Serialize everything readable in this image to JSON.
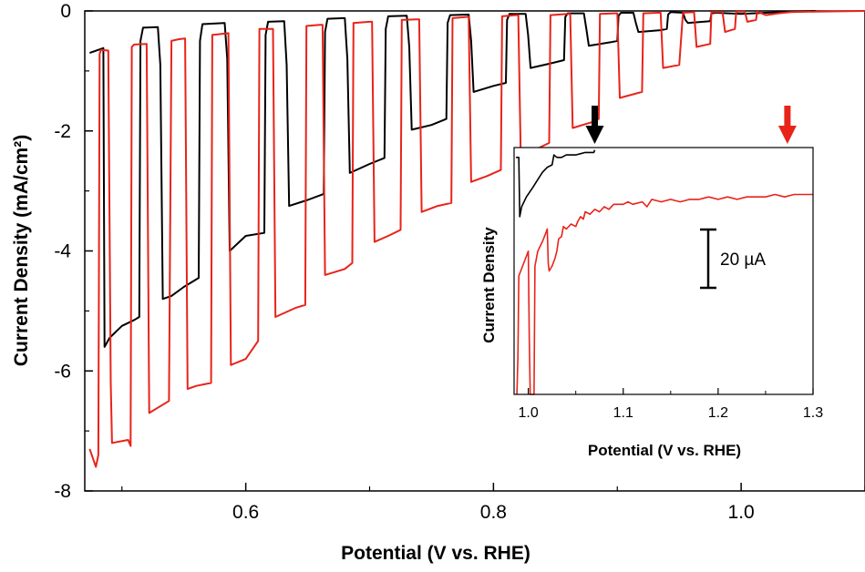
{
  "chart_data": [
    {
      "type": "line",
      "title": "",
      "xlabel": "Potential (V vs. RHE)",
      "ylabel": "Current Density (mA/cm²)",
      "xlim": [
        0.47,
        1.1
      ],
      "ylim": [
        -8,
        0
      ],
      "x_ticks": [
        0.6,
        0.8,
        1.0
      ],
      "x_tick_labels": [
        "0.6",
        "0.8",
        "1.0"
      ],
      "y_ticks": [
        0,
        -2,
        -4,
        -6,
        -8
      ],
      "y_tick_labels": [
        "0",
        "-2",
        "-4",
        "-6",
        "-8"
      ],
      "series": [
        {
          "color": "#000000",
          "on_top": -0.6,
          "points": [
            [
              0.474,
              -0.7
            ],
            [
              0.485,
              -0.62
            ],
            [
              0.486,
              -5.6
            ],
            [
              0.49,
              -5.45
            ],
            [
              0.5,
              -5.25
            ],
            [
              0.51,
              -5.15
            ],
            [
              0.514,
              -5.1
            ],
            [
              0.515,
              -0.5
            ],
            [
              0.517,
              -0.28
            ],
            [
              0.529,
              -0.27
            ],
            [
              0.531,
              -0.9
            ],
            [
              0.533,
              -4.8
            ],
            [
              0.54,
              -4.75
            ],
            [
              0.55,
              -4.6
            ],
            [
              0.562,
              -4.45
            ],
            [
              0.563,
              -0.5
            ],
            [
              0.565,
              -0.22
            ],
            [
              0.583,
              -0.2
            ],
            [
              0.585,
              -0.8
            ],
            [
              0.587,
              -4.0
            ],
            [
              0.6,
              -3.75
            ],
            [
              0.615,
              -3.7
            ],
            [
              0.616,
              -0.4
            ],
            [
              0.618,
              -0.18
            ],
            [
              0.631,
              -0.17
            ],
            [
              0.633,
              -0.9
            ],
            [
              0.635,
              -3.25
            ],
            [
              0.65,
              -3.15
            ],
            [
              0.663,
              -3.05
            ],
            [
              0.664,
              -0.35
            ],
            [
              0.666,
              -0.13
            ],
            [
              0.68,
              -0.12
            ],
            [
              0.682,
              -0.8
            ],
            [
              0.684,
              -2.7
            ],
            [
              0.7,
              -2.55
            ],
            [
              0.712,
              -2.45
            ],
            [
              0.713,
              -0.3
            ],
            [
              0.715,
              -0.09
            ],
            [
              0.73,
              -0.08
            ],
            [
              0.732,
              -0.6
            ],
            [
              0.734,
              -1.98
            ],
            [
              0.75,
              -1.9
            ],
            [
              0.762,
              -1.8
            ],
            [
              0.763,
              -0.2
            ],
            [
              0.765,
              -0.07
            ],
            [
              0.78,
              -0.06
            ],
            [
              0.782,
              -0.5
            ],
            [
              0.784,
              -1.35
            ],
            [
              0.8,
              -1.25
            ],
            [
              0.81,
              -1.2
            ],
            [
              0.811,
              -0.15
            ],
            [
              0.813,
              -0.05
            ],
            [
              0.826,
              -0.05
            ],
            [
              0.828,
              -0.4
            ],
            [
              0.83,
              -0.95
            ],
            [
              0.845,
              -0.88
            ],
            [
              0.857,
              -0.82
            ],
            [
              0.858,
              -0.1
            ],
            [
              0.86,
              -0.04
            ],
            [
              0.873,
              -0.04
            ],
            [
              0.875,
              -0.3
            ],
            [
              0.877,
              -0.58
            ],
            [
              0.895,
              -0.52
            ],
            [
              0.9,
              -0.5
            ],
            [
              0.901,
              -0.08
            ],
            [
              0.903,
              -0.03
            ],
            [
              0.913,
              -0.03
            ],
            [
              0.915,
              -0.2
            ],
            [
              0.917,
              -0.35
            ],
            [
              0.935,
              -0.32
            ],
            [
              0.94,
              -0.3
            ],
            [
              0.941,
              -0.06
            ],
            [
              0.943,
              -0.02
            ],
            [
              0.953,
              -0.03
            ],
            [
              0.955,
              -0.15
            ],
            [
              0.957,
              -0.2
            ],
            [
              0.975,
              -0.17
            ],
            [
              0.976,
              -0.04
            ],
            [
              0.98,
              -0.03
            ],
            [
              1.0,
              -0.05
            ],
            [
              1.02,
              -0.03
            ],
            [
              1.04,
              -0.01
            ],
            [
              1.06,
              0.0
            ]
          ]
        },
        {
          "color": "#e8231a",
          "on_top": -0.72,
          "points": [
            [
              0.474,
              -7.3
            ],
            [
              0.479,
              -7.6
            ],
            [
              0.481,
              -7.4
            ],
            [
              0.482,
              -0.72
            ],
            [
              0.483,
              -0.65
            ],
            [
              0.489,
              -0.66
            ],
            [
              0.491,
              -6.2
            ],
            [
              0.492,
              -7.2
            ],
            [
              0.505,
              -7.15
            ],
            [
              0.507,
              -7.25
            ],
            [
              0.508,
              -0.6
            ],
            [
              0.51,
              -0.56
            ],
            [
              0.52,
              -0.55
            ],
            [
              0.522,
              -6.7
            ],
            [
              0.53,
              -6.6
            ],
            [
              0.538,
              -6.5
            ],
            [
              0.54,
              -0.5
            ],
            [
              0.546,
              -0.47
            ],
            [
              0.551,
              -0.46
            ],
            [
              0.553,
              -6.3
            ],
            [
              0.56,
              -6.25
            ],
            [
              0.572,
              -6.2
            ],
            [
              0.573,
              -0.4
            ],
            [
              0.582,
              -0.38
            ],
            [
              0.586,
              -0.37
            ],
            [
              0.588,
              -5.9
            ],
            [
              0.6,
              -5.8
            ],
            [
              0.61,
              -5.5
            ],
            [
              0.611,
              -0.3
            ],
            [
              0.618,
              -0.3
            ],
            [
              0.622,
              -0.3
            ],
            [
              0.624,
              -5.1
            ],
            [
              0.64,
              -4.95
            ],
            [
              0.648,
              -4.9
            ],
            [
              0.649,
              -0.25
            ],
            [
              0.66,
              -0.23
            ],
            [
              0.662,
              -0.23
            ],
            [
              0.664,
              -4.4
            ],
            [
              0.68,
              -4.3
            ],
            [
              0.686,
              -4.2
            ],
            [
              0.687,
              -0.2
            ],
            [
              0.7,
              -0.18
            ],
            [
              0.702,
              -0.18
            ],
            [
              0.704,
              -3.85
            ],
            [
              0.715,
              -3.75
            ],
            [
              0.725,
              -3.65
            ],
            [
              0.726,
              -0.15
            ],
            [
              0.738,
              -0.14
            ],
            [
              0.74,
              -0.14
            ],
            [
              0.742,
              -3.35
            ],
            [
              0.755,
              -3.25
            ],
            [
              0.766,
              -3.2
            ],
            [
              0.767,
              -0.12
            ],
            [
              0.778,
              -0.1
            ],
            [
              0.78,
              -0.1
            ],
            [
              0.782,
              -2.85
            ],
            [
              0.795,
              -2.75
            ],
            [
              0.806,
              -2.65
            ],
            [
              0.807,
              -0.09
            ],
            [
              0.818,
              -0.07
            ],
            [
              0.82,
              -0.07
            ],
            [
              0.822,
              -2.4
            ],
            [
              0.835,
              -2.3
            ],
            [
              0.845,
              -2.2
            ],
            [
              0.846,
              -0.07
            ],
            [
              0.86,
              -0.05
            ],
            [
              0.862,
              -0.05
            ],
            [
              0.864,
              -1.95
            ],
            [
              0.88,
              -1.85
            ],
            [
              0.885,
              -1.8
            ],
            [
              0.886,
              -0.05
            ],
            [
              0.898,
              -0.04
            ],
            [
              0.9,
              -0.04
            ],
            [
              0.902,
              -1.45
            ],
            [
              0.92,
              -1.35
            ],
            [
              0.921,
              -0.04
            ],
            [
              0.933,
              -0.03
            ],
            [
              0.935,
              -0.03
            ],
            [
              0.937,
              -0.95
            ],
            [
              0.95,
              -0.9
            ],
            [
              0.953,
              -0.03
            ],
            [
              0.962,
              -0.02
            ],
            [
              0.964,
              -0.6
            ],
            [
              0.975,
              -0.55
            ],
            [
              0.976,
              -0.02
            ],
            [
              0.985,
              -0.02
            ],
            [
              0.987,
              -0.35
            ],
            [
              0.995,
              -0.3
            ],
            [
              0.996,
              -0.01
            ],
            [
              1.003,
              -0.01
            ],
            [
              1.005,
              -0.18
            ],
            [
              1.012,
              -0.15
            ],
            [
              1.013,
              -0.01
            ],
            [
              1.02,
              -0.07
            ],
            [
              1.03,
              -0.04
            ],
            [
              1.04,
              -0.02
            ],
            [
              1.06,
              -0.01
            ],
            [
              1.1,
              0.0
            ]
          ]
        }
      ]
    },
    {
      "type": "line",
      "title": "",
      "xlabel": "Potential (V vs. RHE)",
      "ylabel": "Current Density",
      "xlim": [
        0.985,
        1.3
      ],
      "ylim": [
        0,
        100
      ],
      "x_ticks": [
        1.0,
        1.1,
        1.2,
        1.3
      ],
      "x_tick_labels": [
        "1.0",
        "1.1",
        "1.2",
        "1.3"
      ],
      "scale_bar_label": "20 µA",
      "scale_bar_value": 20,
      "arrows": [
        {
          "x": 1.07,
          "color": "#000000"
        },
        {
          "x": 1.273,
          "color": "#e8231a"
        }
      ],
      "series": [
        {
          "color": "#000000",
          "points": [
            [
              0.987,
              96
            ],
            [
              0.99,
              96
            ],
            [
              0.991,
              72
            ],
            [
              0.993,
              76
            ],
            [
              0.998,
              80
            ],
            [
              1.005,
              84
            ],
            [
              1.01,
              87
            ],
            [
              1.015,
              90
            ],
            [
              1.02,
              92
            ],
            [
              1.025,
              93
            ],
            [
              1.027,
              97
            ],
            [
              1.03,
              96
            ],
            [
              1.035,
              96
            ],
            [
              1.04,
              97
            ],
            [
              1.05,
              97
            ],
            [
              1.06,
              98
            ],
            [
              1.069,
              98
            ],
            [
              1.07,
              99
            ]
          ]
        },
        {
          "color": "#e8231a",
          "points": [
            [
              0.988,
              0
            ],
            [
              0.989,
              15
            ],
            [
              0.99,
              48
            ],
            [
              0.992,
              50
            ],
            [
              0.997,
              55
            ],
            [
              1.0,
              58
            ],
            [
              1.001,
              22
            ],
            [
              1.002,
              0
            ],
            [
              1.006,
              0
            ],
            [
              1.007,
              52
            ],
            [
              1.01,
              58
            ],
            [
              1.015,
              62
            ],
            [
              1.018,
              65
            ],
            [
              1.02,
              67
            ],
            [
              1.021,
              53
            ],
            [
              1.022,
              50
            ],
            [
              1.025,
              52
            ],
            [
              1.028,
              55
            ],
            [
              1.03,
              58
            ],
            [
              1.032,
              63
            ],
            [
              1.035,
              64
            ],
            [
              1.037,
              68
            ],
            [
              1.04,
              67
            ],
            [
              1.045,
              69
            ],
            [
              1.05,
              68
            ],
            [
              1.052,
              70
            ],
            [
              1.055,
              72
            ],
            [
              1.058,
              71
            ],
            [
              1.06,
              74
            ],
            [
              1.065,
              73
            ],
            [
              1.07,
              75
            ],
            [
              1.075,
              74
            ],
            [
              1.08,
              76
            ],
            [
              1.085,
              75
            ],
            [
              1.09,
              77
            ],
            [
              1.1,
              77
            ],
            [
              1.105,
              78
            ],
            [
              1.11,
              77
            ],
            [
              1.12,
              78
            ],
            [
              1.125,
              76
            ],
            [
              1.13,
              79
            ],
            [
              1.14,
              78
            ],
            [
              1.15,
              79
            ],
            [
              1.16,
              78
            ],
            [
              1.17,
              79
            ],
            [
              1.18,
              79
            ],
            [
              1.19,
              80
            ],
            [
              1.2,
              79
            ],
            [
              1.21,
              80
            ],
            [
              1.22,
              79
            ],
            [
              1.23,
              80
            ],
            [
              1.24,
              80
            ],
            [
              1.25,
              80
            ],
            [
              1.26,
              81
            ],
            [
              1.27,
              80
            ],
            [
              1.28,
              81
            ],
            [
              1.29,
              81
            ],
            [
              1.3,
              81
            ]
          ]
        }
      ]
    }
  ]
}
